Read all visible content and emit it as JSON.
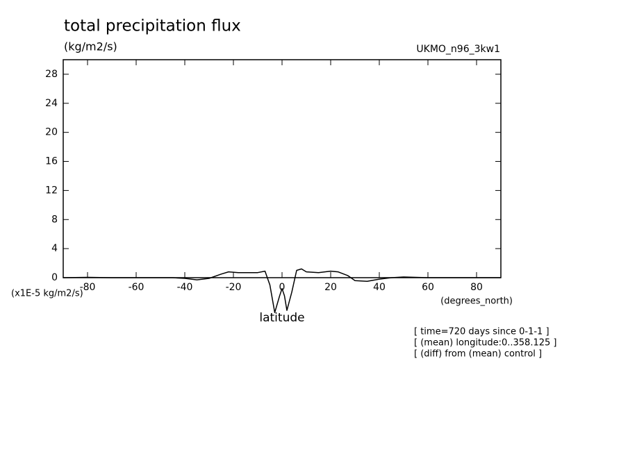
{
  "chart_data": {
    "type": "line",
    "title": "total precipitation flux",
    "units_label": "(kg/m2/s)",
    "dataset": "UKMO_n96_3kw1",
    "y_axis_label": "(x1E-5 kg/m2/s)",
    "x_units_label": "(degrees_north)",
    "x_axis_label": "latitude",
    "notes": [
      "[ time=720 days since 0-1-1 ]",
      "[ (mean) longitude:0..358.125 ]",
      "[ (diff) from (mean) control ]"
    ],
    "x": [
      -90,
      -80,
      -70,
      -60,
      -50,
      -45,
      -40,
      -35,
      -30,
      -25,
      -22,
      -18,
      -15,
      -10,
      -7,
      -5,
      -3,
      -1,
      0,
      1,
      2,
      4,
      6,
      8,
      10,
      15,
      20,
      23,
      27,
      30,
      35,
      40,
      45,
      50,
      60,
      70,
      80,
      90
    ],
    "values": [
      0,
      0.05,
      0,
      0,
      0,
      0,
      -0.1,
      -0.3,
      -0.1,
      0.5,
      0.8,
      0.7,
      0.7,
      0.7,
      0.9,
      -1,
      -4.8,
      -2.5,
      -1.5,
      -2.5,
      -4.5,
      -2,
      1,
      1.2,
      0.8,
      0.7,
      0.9,
      0.8,
      0.3,
      -0.4,
      -0.5,
      -0.2,
      0,
      0.1,
      0,
      0,
      0,
      0
    ],
    "color": "#000000",
    "xlim": [
      -90,
      90
    ],
    "xticks": [
      -80,
      -60,
      -40,
      -20,
      0,
      20,
      40,
      60,
      80
    ],
    "ylim": [
      0,
      30
    ],
    "yticks": [
      0,
      4,
      8,
      12,
      16,
      20,
      24,
      28
    ]
  }
}
